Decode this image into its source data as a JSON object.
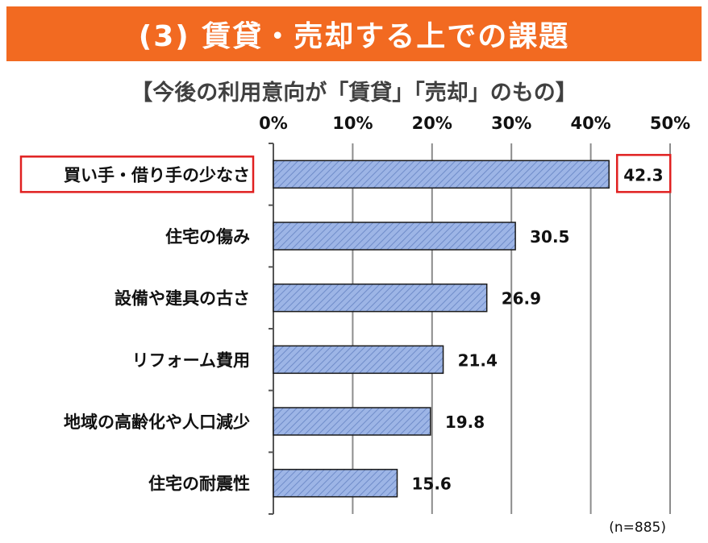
{
  "header": {
    "banner_title": "(3) 賃貸・売却する上での課題"
  },
  "chart_data": {
    "type": "bar",
    "orientation": "horizontal",
    "title": "【今後の利用意向が「賃貸」「売却」のもの】",
    "categories": [
      "買い手・借り手の少なさ",
      "住宅の傷み",
      "設備や建具の古さ",
      "リフォーム費用",
      "地域の高齢化や人口減少",
      "住宅の耐震性"
    ],
    "values": [
      42.3,
      30.5,
      26.9,
      21.4,
      19.8,
      15.6
    ],
    "value_labels": [
      "42.3",
      "30.5",
      "26.9",
      "21.4",
      "19.8",
      "15.6"
    ],
    "xlim": [
      0,
      50
    ],
    "ticks": [
      "0%",
      "10%",
      "20%",
      "30%",
      "40%",
      "50%"
    ],
    "grid": true,
    "note": "(n=885)",
    "highlighted_category_index": 0,
    "colors": {
      "bar_fill": "#9db5e6",
      "bar_hatch": "#6f8cc9",
      "highlight": "#e02020",
      "banner": "#f26a21"
    }
  }
}
